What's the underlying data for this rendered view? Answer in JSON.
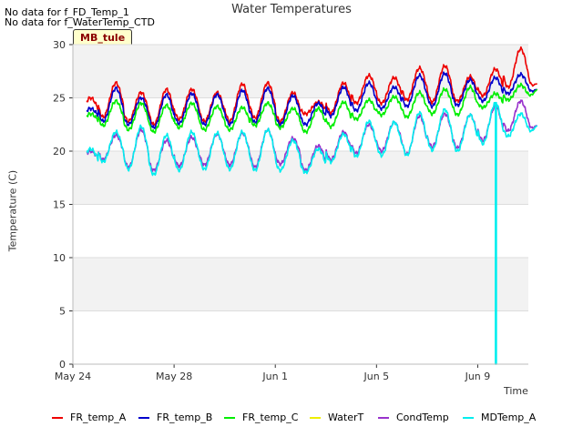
{
  "notes": [
    "No data for f_FD_Temp_1",
    "No data for f_WaterTemp_CTD"
  ],
  "site_badge": "MB_tule",
  "chart_data": {
    "type": "line",
    "title": "Water Temperatures",
    "xlabel": "Time",
    "ylabel": "Temperature (C)",
    "x_start": "2024-05-24",
    "x_end": "2024-06-11",
    "xlim": [
      "2024-05-24",
      "2024-06-11"
    ],
    "ylim": [
      0,
      30
    ],
    "yticks": [
      0,
      5,
      10,
      15,
      20,
      25,
      30
    ],
    "xticks": [
      {
        "label": "May 24",
        "date": "2024-05-24"
      },
      {
        "label": "May 28",
        "date": "2024-05-28"
      },
      {
        "label": "Jun 1",
        "date": "2024-06-01"
      },
      {
        "label": "Jun 5",
        "date": "2024-06-05"
      },
      {
        "label": "Jun 9",
        "date": "2024-06-09"
      }
    ],
    "grid": true,
    "legend_position": "bottom",
    "series": [
      {
        "name": "FR_temp_A",
        "color": "#ee0000",
        "daily_min": [
          23.4,
          23.2,
          22.8,
          22.5,
          23.0,
          22.8,
          22.8,
          23.1,
          22.8,
          23.5,
          23.6,
          24.5,
          24.5,
          24.8,
          24.6,
          24.7,
          25.2,
          26.0
        ],
        "daily_max": [
          25.0,
          26.4,
          25.5,
          25.8,
          25.8,
          25.5,
          26.3,
          26.4,
          25.5,
          24.6,
          26.4,
          27.1,
          26.9,
          27.8,
          28.0,
          27.0,
          27.7,
          29.6
        ],
        "last": 26.3
      },
      {
        "name": "FR_temp_B",
        "color": "#0000cc",
        "daily_min": [
          23.0,
          22.8,
          22.5,
          22.2,
          22.6,
          22.5,
          22.5,
          22.7,
          22.5,
          22.5,
          23.3,
          23.8,
          24.0,
          24.2,
          24.2,
          24.3,
          24.7,
          25.4
        ],
        "daily_max": [
          24.0,
          25.9,
          25.0,
          25.3,
          25.4,
          25.3,
          25.7,
          25.9,
          25.2,
          24.5,
          26.0,
          26.4,
          26.0,
          27.1,
          27.3,
          26.7,
          26.9,
          27.2
        ],
        "last": 25.8
      },
      {
        "name": "FR_temp_C",
        "color": "#00ee00",
        "daily_min": [
          22.6,
          22.4,
          22.0,
          21.8,
          22.2,
          22.0,
          22.0,
          22.4,
          22.2,
          21.8,
          22.3,
          23.0,
          23.4,
          23.2,
          23.5,
          23.4,
          24.1,
          24.8
        ],
        "daily_max": [
          23.5,
          24.7,
          24.5,
          24.3,
          24.5,
          24.2,
          24.1,
          24.5,
          24.0,
          24.0,
          24.6,
          24.8,
          25.1,
          25.5,
          25.8,
          26.0,
          25.4,
          26.2
        ],
        "last": 25.8
      },
      {
        "name": "WaterT",
        "color": "#eeee00",
        "daily_min": [],
        "daily_max": [],
        "last": null
      },
      {
        "name": "CondTemp",
        "color": "#9933cc",
        "daily_min": [
          19.0,
          19.2,
          18.5,
          18.2,
          18.6,
          18.7,
          18.7,
          18.5,
          18.8,
          18.2,
          19.2,
          19.8,
          20.0,
          19.7,
          20.4,
          20.3,
          21.0,
          21.9
        ],
        "daily_max": [
          20.0,
          21.5,
          22.0,
          21.0,
          21.3,
          21.6,
          21.7,
          22.0,
          21.2,
          20.5,
          21.8,
          22.5,
          22.7,
          23.3,
          23.5,
          23.4,
          24.2,
          24.7
        ],
        "last": 22.4
      },
      {
        "name": "MDTemp_A",
        "color": "#00eeee",
        "daily_min": [
          18.7,
          19.0,
          18.3,
          17.8,
          18.2,
          18.3,
          18.3,
          18.2,
          18.2,
          18.0,
          19.0,
          19.5,
          19.6,
          19.6,
          20.1,
          20.0,
          20.7,
          21.4
        ],
        "daily_max": [
          20.2,
          21.8,
          22.3,
          21.5,
          21.8,
          21.7,
          21.8,
          22.0,
          21.0,
          20.2,
          21.6,
          22.8,
          22.7,
          23.6,
          23.9,
          23.4,
          24.5,
          23.5
        ],
        "last": 22.4,
        "dropout": {
          "date": "2024-06-09",
          "value": 0
        }
      }
    ]
  }
}
